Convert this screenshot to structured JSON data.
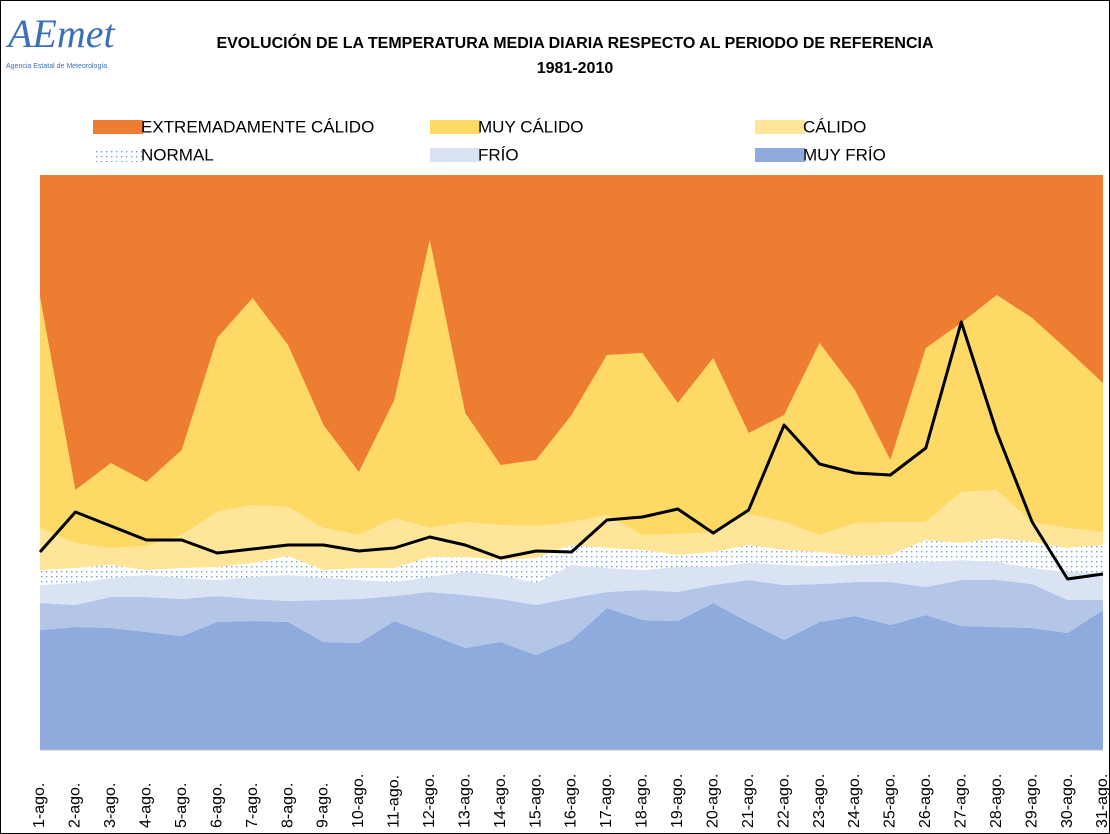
{
  "logo": {
    "name": "AEmet",
    "subtitle": "Agencia Estatal de Meteorología"
  },
  "chart_data": {
    "type": "stacked-area",
    "title": [
      "EVOLUCIÓN DE LA TEMPERATURA MEDIA DIARIA RESPECTO AL PERIODO DE REFERENCIA",
      "1981-2010"
    ],
    "categories": [
      "1-ago.",
      "2-ago.",
      "3-ago.",
      "4-ago.",
      "5-ago.",
      "6-ago.",
      "7-ago.",
      "8-ago.",
      "9-ago.",
      "10-ago.",
      "11-ago.",
      "12-ago.",
      "13-ago.",
      "14-ago.",
      "15-ago.",
      "16-ago.",
      "17-ago.",
      "18-ago.",
      "19-ago.",
      "20-ago.",
      "21-ago.",
      "22-ago.",
      "23-ago.",
      "24-ago.",
      "25-ago.",
      "26-ago.",
      "27-ago.",
      "28-ago.",
      "29-ago.",
      "30-ago.",
      "31-ago."
    ],
    "ylim": [
      0,
      575
    ],
    "series": [
      {
        "name": "EXTREMADAMENTE CÁLIDO",
        "color": "#ed7d31",
        "values": [
          122,
          315,
          288,
          307,
          275,
          163,
          123,
          170,
          250,
          297,
          225,
          65,
          238,
          290,
          285,
          240,
          180,
          178,
          228,
          183,
          258,
          240,
          168,
          215,
          285,
          173,
          148,
          120,
          143,
          175,
          208
        ]
      },
      {
        "name": "MUY CÁLIDO",
        "color": "#ffd966",
        "values": [
          231,
          53,
          85,
          64,
          85,
          174,
          207,
          162,
          103,
          63,
          118,
          288,
          109,
          60,
          66,
          107,
          160,
          182,
          131,
          174,
          81,
          107,
          192,
          133,
          62,
          174,
          169,
          195,
          204,
          178,
          149
        ]
      },
      {
        "name": "CÁLIDO",
        "color": "#fee599",
        "values": [
          42,
          25,
          17,
          24,
          33,
          55,
          58,
          49,
          42,
          33,
          50,
          29,
          35,
          35,
          32,
          23,
          33,
          15,
          21,
          20,
          31,
          28,
          17,
          33,
          33,
          18,
          51,
          48,
          20,
          20,
          13
        ]
      },
      {
        "name": "NORMAL",
        "color": "#9dc3e6",
        "pattern": "dots",
        "values": [
          15,
          15,
          13,
          5,
          10,
          13,
          14,
          19,
          8,
          12,
          14,
          20,
          15,
          15,
          25,
          20,
          20,
          20,
          12,
          15,
          18,
          15,
          14,
          9,
          8,
          22,
          17,
          24,
          26,
          24,
          28
        ]
      },
      {
        "name": "FRÍO",
        "color": "#dae3f3",
        "values": [
          18,
          22,
          19,
          22,
          21,
          16,
          22,
          26,
          22,
          19,
          14,
          15,
          23,
          24,
          22,
          33,
          24,
          20,
          25,
          18,
          17,
          20,
          18,
          17,
          19,
          25,
          20,
          18,
          16,
          28,
          27
        ]
      },
      {
        "color": "#b4c6e7",
        "values": [
          27,
          22,
          31,
          35,
          37,
          26,
          22,
          21,
          42,
          44,
          25,
          42,
          53,
          43,
          50,
          42,
          16,
          30,
          29,
          18,
          42,
          55,
          38,
          34,
          43,
          28,
          46,
          47,
          44,
          33,
          10
        ]
      },
      {
        "name": "MUY FRÍO",
        "color": "#8faadc",
        "values": [
          120,
          123,
          122,
          118,
          114,
          128,
          129,
          128,
          108,
          107,
          129,
          116,
          102,
          108,
          95,
          110,
          142,
          130,
          129,
          147,
          128,
          110,
          128,
          134,
          125,
          135,
          124,
          123,
          122,
          117,
          140
        ]
      }
    ],
    "line": {
      "color": "#000000",
      "values": [
        198,
        238,
        224,
        210,
        210,
        197,
        201,
        205,
        205,
        199,
        202,
        213,
        205,
        192,
        199,
        198,
        230,
        233,
        241,
        217,
        240,
        325,
        286,
        277,
        275,
        302,
        428,
        318,
        228,
        171,
        176
      ]
    }
  }
}
